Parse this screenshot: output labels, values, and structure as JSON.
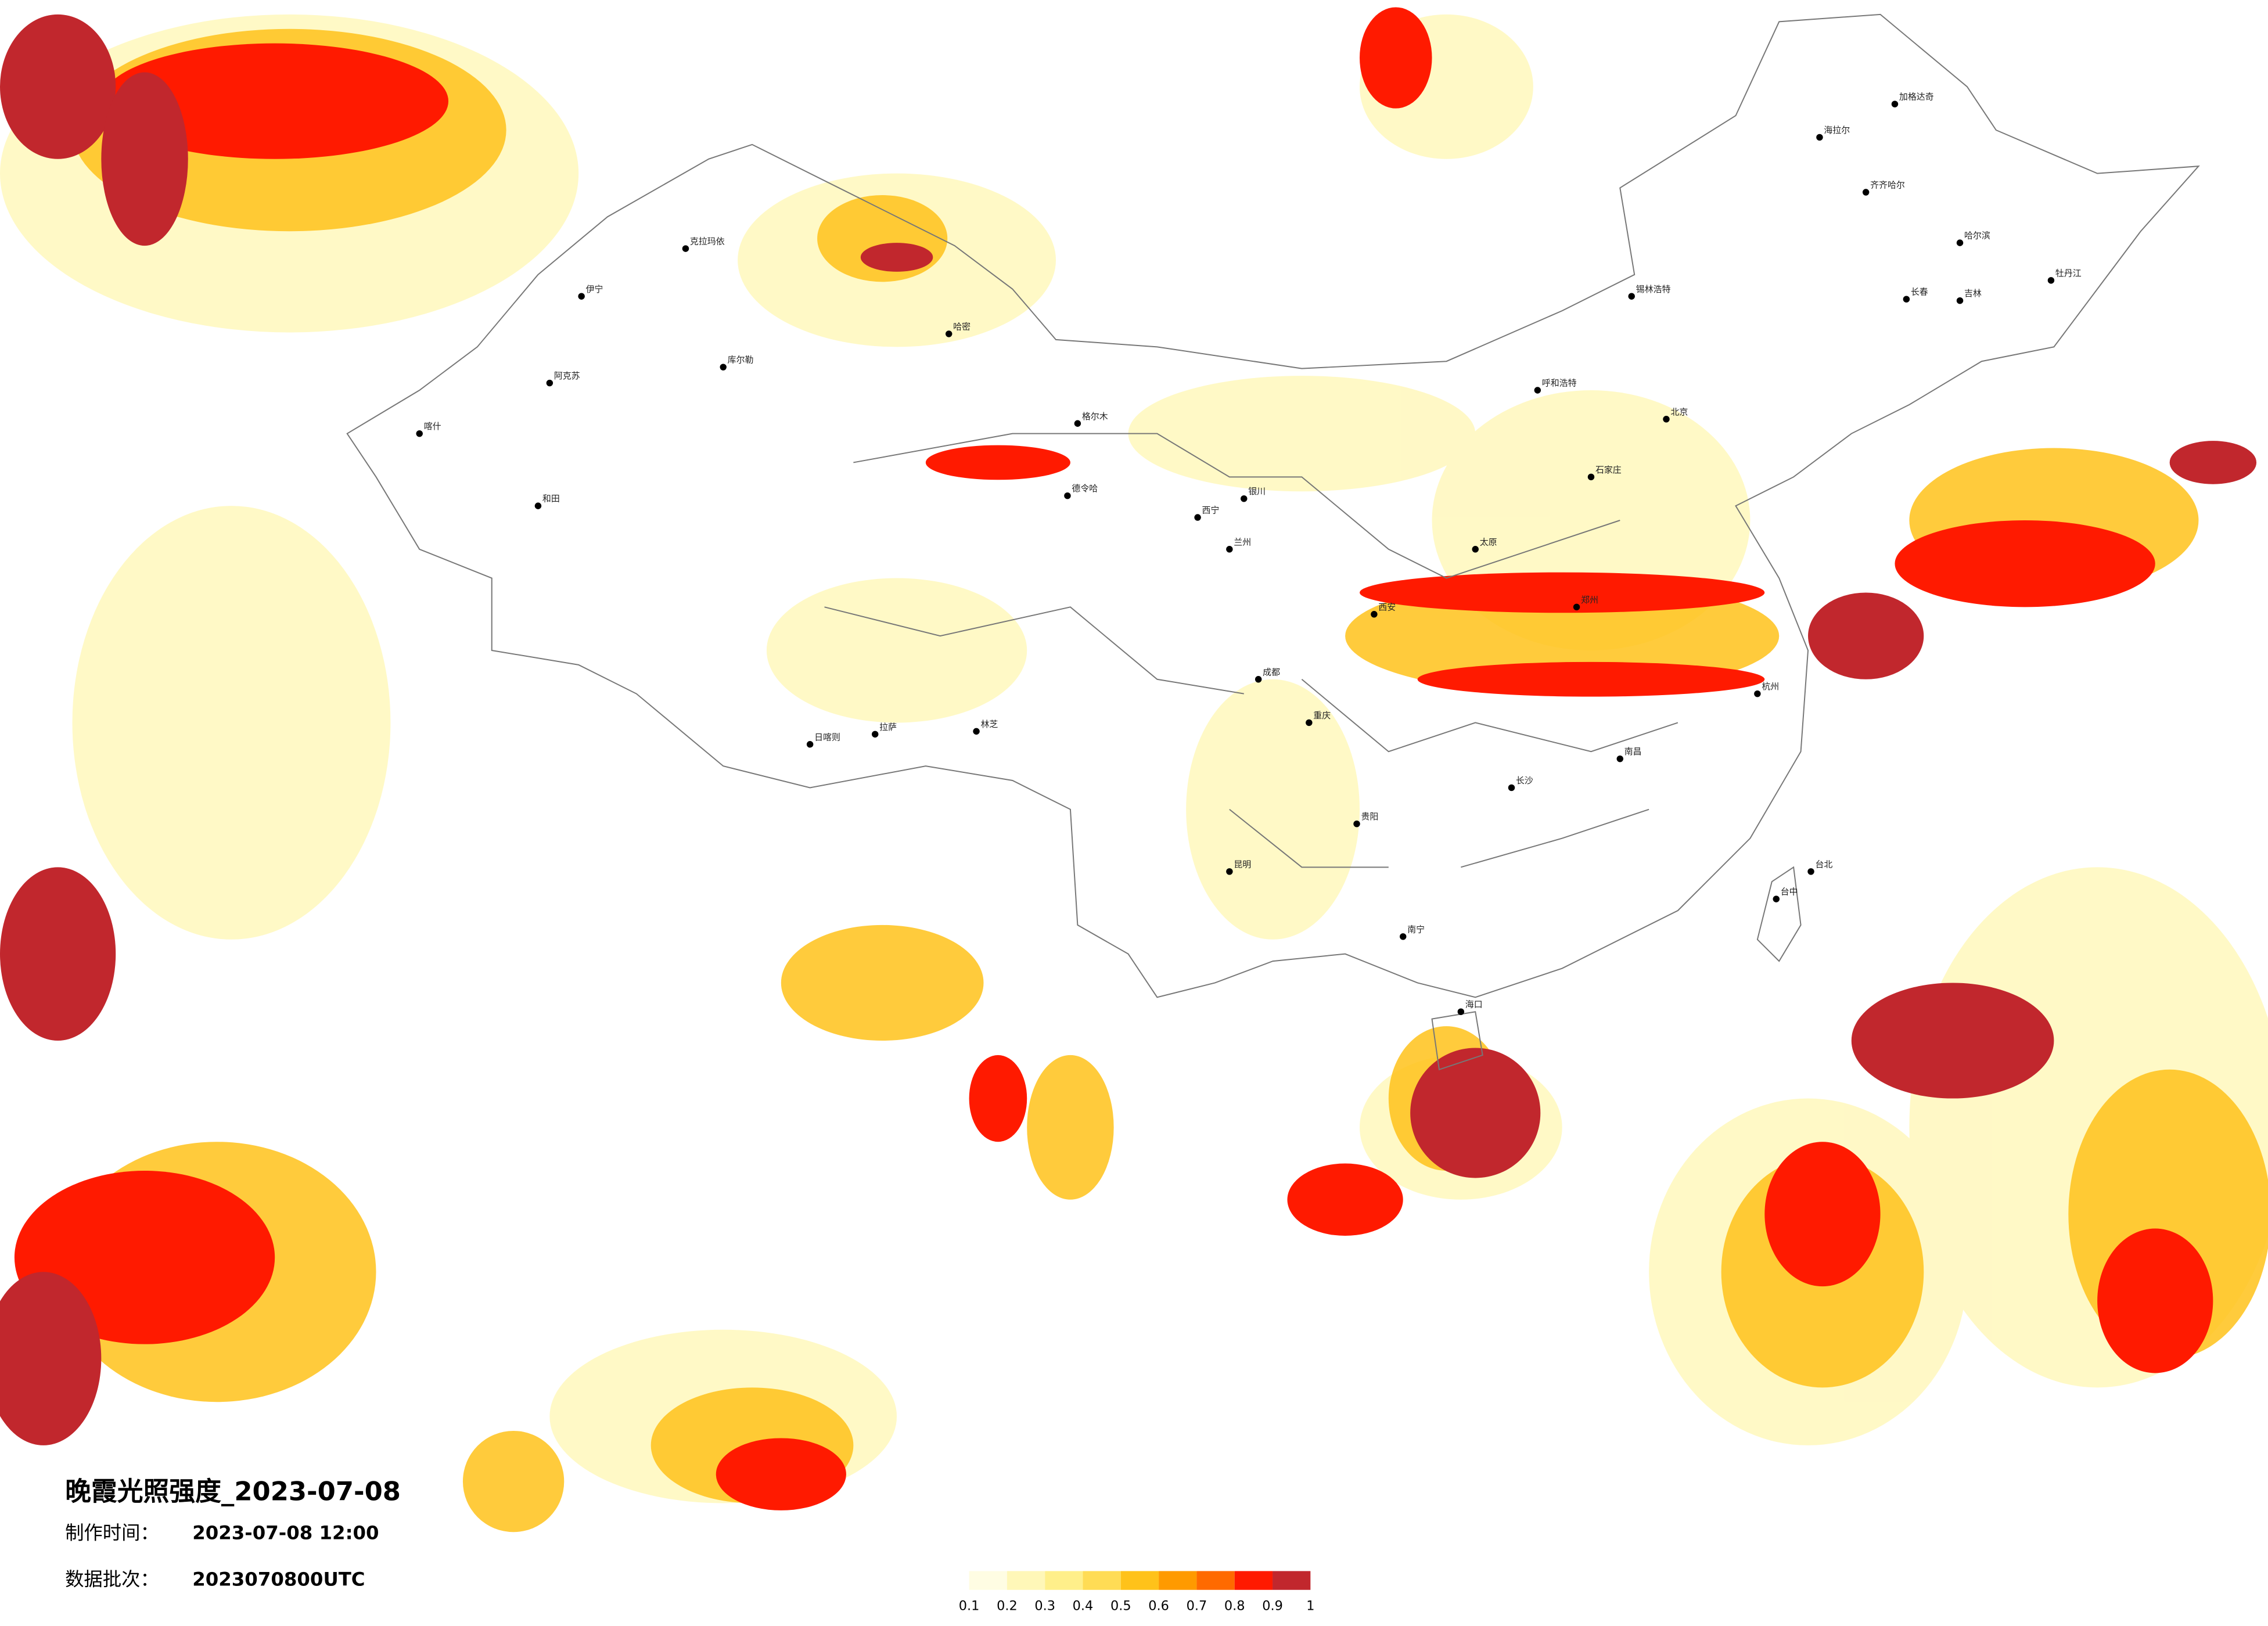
{
  "title": "晚霞光照强度_2023-07-08",
  "production_time": {
    "label": "制作时间：",
    "value": "2023-07-08 12:00"
  },
  "data_batch": {
    "label": "数据批次：",
    "value": "2023070800UTC"
  },
  "colorbar": {
    "ticks": [
      0.1,
      0.2,
      0.3,
      0.4,
      0.5,
      0.6,
      0.7,
      0.8,
      0.9,
      1
    ],
    "colors": [
      "#fffde3",
      "#fff7b8",
      "#ffef8a",
      "#ffdc55",
      "#ffc21a",
      "#ff9a00",
      "#ff6a00",
      "#ff1a00",
      "#c1272d"
    ]
  },
  "cities": [
    "克拉玛依",
    "伊宁",
    "阿克苏",
    "喀什",
    "和田",
    "库尔勒",
    "哈密",
    "格尔木",
    "德令哈",
    "西宁",
    "拉萨",
    "日喀则",
    "林芝",
    "昆明",
    "贵阳",
    "南宁",
    "海口",
    "长沙",
    "北京",
    "石家庄",
    "呼和浩特",
    "锡林浩特",
    "海拉尔",
    "加格达奇",
    "齐齐哈尔",
    "哈尔滨",
    "长春",
    "吉林",
    "牡丹江",
    "台北",
    "台中",
    "南昌",
    "杭州",
    "西安",
    "成都",
    "重庆",
    "兰州",
    "银川",
    "太原",
    "郑州"
  ]
}
